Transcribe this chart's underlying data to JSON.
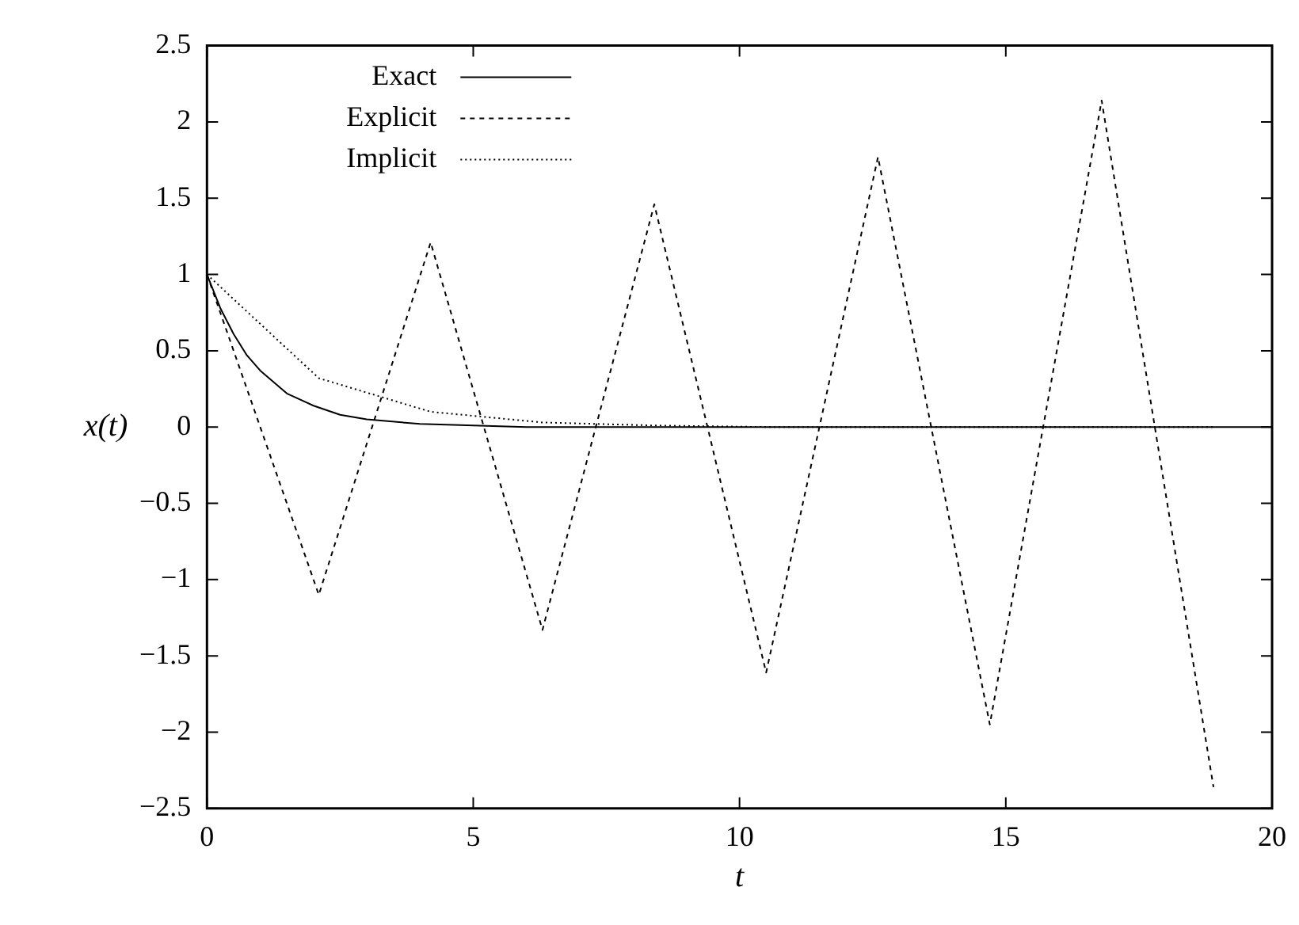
{
  "chart_data": {
    "type": "line",
    "xlabel": "t",
    "ylabel": "x(t)",
    "xlim": [
      0,
      20
    ],
    "xticks": [
      0,
      5,
      10,
      15,
      20
    ],
    "ylim": [
      -2.5,
      2.5
    ],
    "yticks": [
      {
        "value": -2.5,
        "label": "−2.5"
      },
      {
        "value": -2,
        "label": "−2"
      },
      {
        "value": -1.5,
        "label": "−1.5"
      },
      {
        "value": -1,
        "label": "−1"
      },
      {
        "value": -0.5,
        "label": "−0.5"
      },
      0,
      0.5,
      1,
      1.5,
      2,
      2.5
    ],
    "grid": false,
    "legend": "top left",
    "marker": "none",
    "series": [
      {
        "name": "Exact",
        "color": "#000000",
        "line_style": "solid",
        "x": [
          0,
          0.25,
          0.5,
          0.75,
          1,
          1.5,
          2,
          2.5,
          3,
          4,
          5,
          6,
          20
        ],
        "values": [
          1,
          0.78,
          0.61,
          0.47,
          0.37,
          0.22,
          0.14,
          0.08,
          0.05,
          0.02,
          0.01,
          0,
          0
        ]
      },
      {
        "name": "Explicit",
        "color": "#000000",
        "line_style": "dashed",
        "x": [
          0,
          2.1,
          4.2,
          6.3,
          8.4,
          10.5,
          12.6,
          14.7,
          16.8,
          18.9
        ],
        "values": [
          1,
          -1.1,
          1.21,
          -1.33,
          1.46,
          -1.61,
          1.77,
          -1.95,
          2.14,
          -2.36
        ]
      },
      {
        "name": "Implicit",
        "color": "#000000",
        "line_style": "dotted",
        "x": [
          0,
          2.1,
          4.2,
          6.3,
          8.4,
          10.5,
          12.6,
          14.7,
          16.8,
          18.9
        ],
        "values": [
          1,
          0.32,
          0.1,
          0.03,
          0.01,
          0,
          0,
          0,
          0,
          0
        ]
      }
    ]
  }
}
